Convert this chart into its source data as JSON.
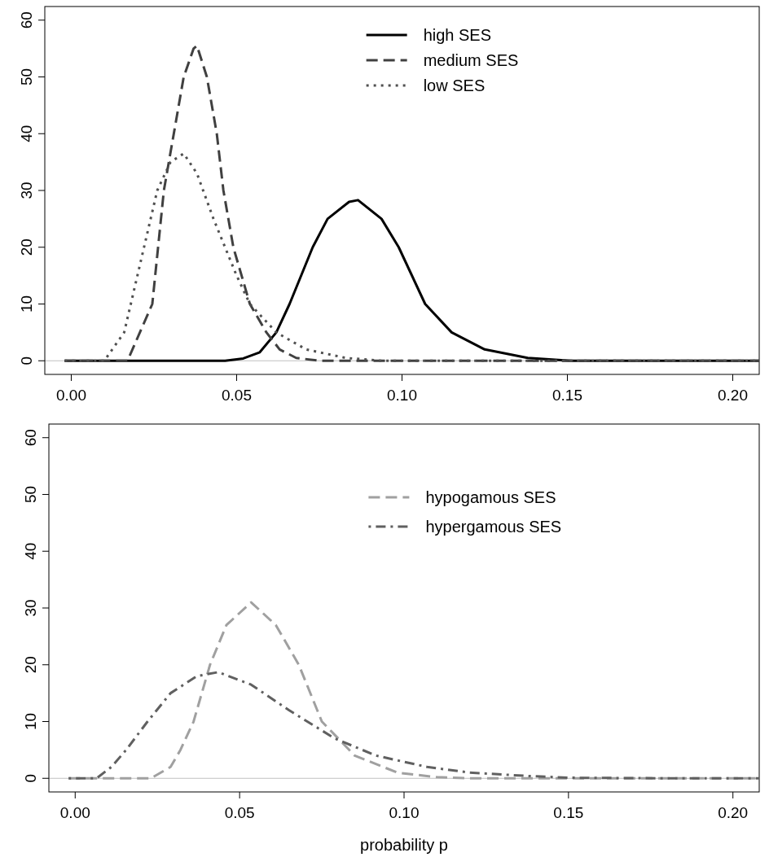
{
  "chart_data": [
    {
      "type": "line",
      "xlim": [
        -0.008,
        0.208
      ],
      "ylim": [
        -2.4,
        62.4
      ],
      "xticks": [
        {
          "value": 0,
          "label": "0.00"
        },
        {
          "value": 0.05,
          "label": "0.05"
        },
        {
          "value": 0.1,
          "label": "0.10"
        },
        {
          "value": 0.15,
          "label": "0.15"
        },
        {
          "value": 0.2,
          "label": "0.20"
        }
      ],
      "yticks": [
        0,
        10,
        20,
        30,
        40,
        50,
        60
      ],
      "legend": "top right",
      "grid": false,
      "ref_lines": [
        {
          "axis": "y",
          "value": 0,
          "color": "#c0c0c0"
        }
      ],
      "series": [
        {
          "name": "high SES",
          "color": "#000000",
          "line_style": "solid",
          "x": [
            -0.002,
            0.02,
            0.04,
            0.0465,
            0.052,
            0.057,
            0.062,
            0.066,
            0.073,
            0.0775,
            0.084,
            0.0867,
            0.0938,
            0.099,
            0.107,
            0.115,
            0.125,
            0.138,
            0.151,
            0.18,
            0.208
          ],
          "values": [
            0,
            0,
            0,
            0,
            0.4,
            1.5,
            5,
            10,
            20,
            25,
            28,
            28.3,
            25,
            20,
            10,
            5,
            2,
            0.5,
            0,
            0,
            0
          ]
        },
        {
          "name": "medium SES",
          "color": "#404040",
          "line_style": "dashed",
          "x": [
            -0.002,
            0.01,
            0.017,
            0.0245,
            0.028,
            0.031,
            0.034,
            0.037,
            0.038,
            0.041,
            0.044,
            0.046,
            0.049,
            0.054,
            0.059,
            0.063,
            0.068,
            0.075,
            0.1,
            0.15,
            0.208
          ],
          "values": [
            0,
            0,
            0,
            10,
            30,
            40,
            50,
            55,
            55.5,
            50,
            40,
            30,
            20,
            10,
            5,
            2,
            0.5,
            0,
            0,
            0,
            0
          ]
        },
        {
          "name": "low SES",
          "color": "#505050",
          "line_style": "dotted",
          "x": [
            -0.002,
            0.005,
            0.01,
            0.016,
            0.018,
            0.022,
            0.026,
            0.03,
            0.034,
            0.038,
            0.043,
            0.0465,
            0.05,
            0.054,
            0.062,
            0.071,
            0.083,
            0.094,
            0.12,
            0.208
          ],
          "values": [
            0,
            0,
            0,
            5,
            10,
            20,
            30,
            35,
            36.5,
            33,
            25,
            20,
            15,
            10,
            5,
            2,
            0.5,
            0,
            0,
            0
          ]
        }
      ]
    },
    {
      "type": "line",
      "xlabel": "probability p",
      "xlim": [
        -0.008,
        0.208
      ],
      "ylim": [
        -2.4,
        62.4
      ],
      "xticks": [
        {
          "value": 0,
          "label": "0.00"
        },
        {
          "value": 0.05,
          "label": "0.05"
        },
        {
          "value": 0.1,
          "label": "0.10"
        },
        {
          "value": 0.15,
          "label": "0.15"
        },
        {
          "value": 0.2,
          "label": "0.20"
        }
      ],
      "yticks": [
        0,
        10,
        20,
        30,
        40,
        50,
        60
      ],
      "legend": "top right",
      "grid": false,
      "ref_lines": [
        {
          "axis": "y",
          "value": 0,
          "color": "#c0c0c0"
        }
      ],
      "series": [
        {
          "name": "hypogamous SES",
          "color": "#a0a0a0",
          "line_style": "dashed",
          "x": [
            -0.002,
            0.01,
            0.023,
            0.029,
            0.032,
            0.036,
            0.041,
            0.046,
            0.0535,
            0.061,
            0.068,
            0.075,
            0.085,
            0.098,
            0.11,
            0.121,
            0.15,
            0.208
          ],
          "values": [
            0,
            0,
            0,
            2,
            5,
            10,
            20,
            27,
            31,
            27,
            20,
            10,
            4,
            1,
            0.2,
            0,
            0,
            0
          ]
        },
        {
          "name": "hypergamous SES",
          "color": "#606060",
          "line_style": "dashdot",
          "x": [
            -0.002,
            0.0065,
            0.011,
            0.0155,
            0.022,
            0.029,
            0.037,
            0.0435,
            0.0535,
            0.065,
            0.079,
            0.0915,
            0.107,
            0.12,
            0.138,
            0.15,
            0.18,
            0.208
          ],
          "values": [
            0,
            0,
            2,
            5,
            10,
            15,
            18,
            18.7,
            16.5,
            12,
            7,
            4,
            2,
            1,
            0.4,
            0.1,
            0,
            0
          ]
        }
      ]
    }
  ]
}
